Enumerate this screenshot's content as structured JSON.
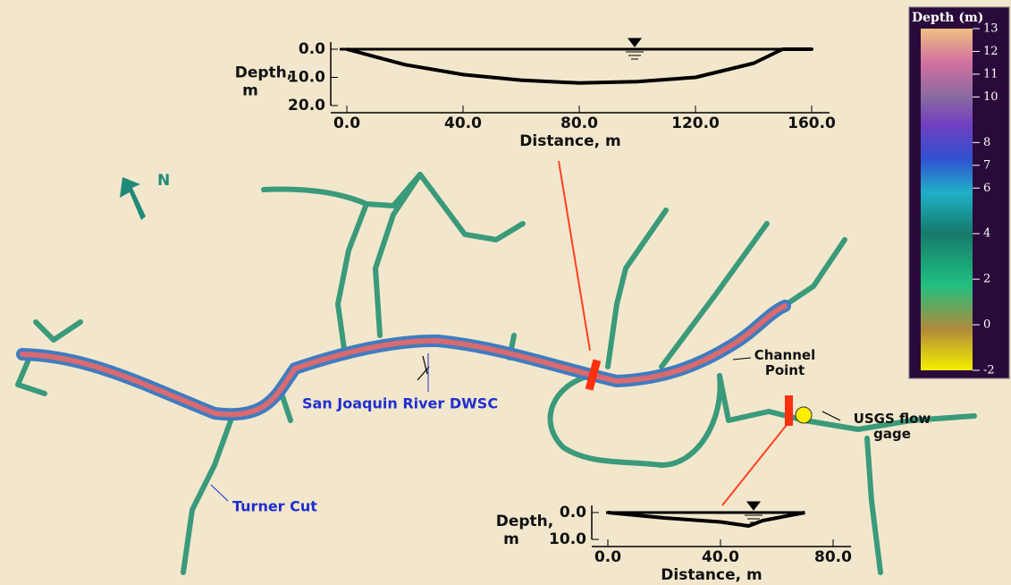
{
  "legend": {
    "title": "Depth (m)",
    "ticks": [
      13,
      12,
      11,
      10,
      8,
      7,
      6,
      4,
      2,
      0,
      -2
    ],
    "range": [
      -2,
      13
    ]
  },
  "north_label": "N",
  "labels": {
    "river": "San Joaquin River DWSC",
    "turner": "Turner Cut",
    "channel_point": "Channel Point",
    "gage": "USGS flow gage"
  },
  "sections": [
    {
      "ylabel": "Depth, m",
      "xlabel": "Distance, m",
      "xlim": [
        0,
        160
      ],
      "ylim": [
        0,
        20
      ],
      "xticks": [
        {
          "value": 0,
          "label": "0.0"
        },
        {
          "value": 40,
          "label": "40.0"
        },
        {
          "value": 80,
          "label": "80.0"
        },
        {
          "value": 120,
          "label": "120.0"
        },
        {
          "value": 160,
          "label": "160.0"
        }
      ],
      "yticks": [
        {
          "value": 0,
          "label": "0.0"
        },
        {
          "value": 10,
          "label": "10.0"
        },
        {
          "value": 20,
          "label": "20.0"
        }
      ],
      "distance": [
        0,
        20,
        40,
        60,
        80,
        100,
        120,
        140,
        150,
        160
      ],
      "depth": [
        0,
        5.5,
        9,
        11,
        12,
        11.5,
        10,
        5,
        0,
        0
      ]
    },
    {
      "ylabel": "Depth, m",
      "xlabel": "Distance, m",
      "xlim": [
        0,
        80
      ],
      "ylim": [
        0,
        10
      ],
      "xticks": [
        {
          "value": 0,
          "label": "0.0"
        },
        {
          "value": 40,
          "label": "40.0"
        },
        {
          "value": 80,
          "label": "80.0"
        }
      ],
      "yticks": [
        {
          "value": 0,
          "label": "0.0"
        },
        {
          "value": 10,
          "label": "10.0"
        }
      ],
      "distance": [
        0,
        20,
        40,
        50,
        55,
        70
      ],
      "depth": [
        0,
        2,
        3.5,
        5,
        3,
        0
      ]
    }
  ]
}
